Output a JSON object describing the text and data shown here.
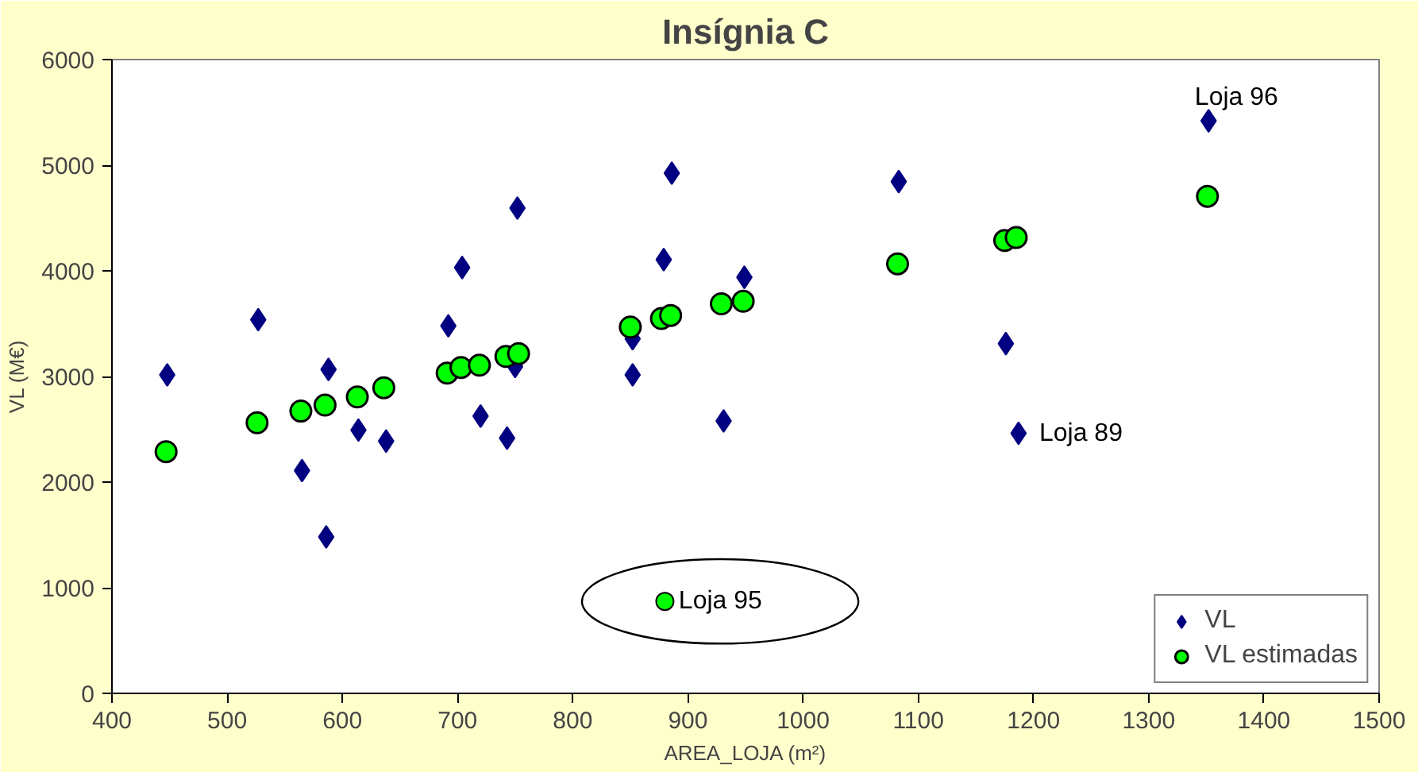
{
  "chart_data": {
    "type": "scatter",
    "title": "Insígnia C",
    "xlabel": "AREA_LOJA (m²)",
    "ylabel": "VL (M€)",
    "xlim": [
      400,
      1500
    ],
    "xticks": [
      400,
      500,
      600,
      700,
      800,
      900,
      1000,
      1100,
      1200,
      1300,
      1400,
      1500
    ],
    "ylim": [
      0,
      6000
    ],
    "yticks": [
      0,
      1000,
      2000,
      3000,
      4000,
      5000,
      6000
    ],
    "grid": false,
    "legend": "bottom right",
    "series": [
      {
        "name": "VL",
        "color": "#000080",
        "marker": "diamond",
        "x": [
          448,
          527,
          565,
          588,
          586,
          614,
          638,
          692,
          704,
          720,
          743,
          750,
          752,
          886,
          879,
          949,
          852,
          852,
          931,
          1083,
          1176,
          1187,
          1352
        ],
        "values": [
          3015,
          3538,
          2109,
          3067,
          1481,
          2492,
          2388,
          3479,
          4031,
          2625,
          2416,
          3095,
          4594,
          4925,
          4106,
          3939,
          3357,
          3015,
          2579,
          4845,
          3311,
          2462,
          5420
        ]
      },
      {
        "name": "VL estimadas",
        "color": "#00ff00",
        "marker": "circle",
        "x": [
          447,
          526,
          564,
          585,
          613,
          636,
          691,
          703,
          719,
          742,
          753,
          850,
          877,
          885,
          929,
          948,
          1082,
          1175,
          1185,
          1351
        ],
        "values": [
          2288,
          2562,
          2672,
          2729,
          2806,
          2893,
          3032,
          3085,
          3107,
          3189,
          3217,
          3468,
          3548,
          3578,
          3688,
          3712,
          4066,
          4287,
          4315,
          4705
        ]
      }
    ],
    "annotations": [
      {
        "text": "Loja 96",
        "x": 1352,
        "y": 5420
      },
      {
        "text": "Loja 89",
        "x": 1187,
        "y": 2462
      },
      {
        "text": "Loja 95",
        "x": 880,
        "y": 871
      }
    ]
  }
}
